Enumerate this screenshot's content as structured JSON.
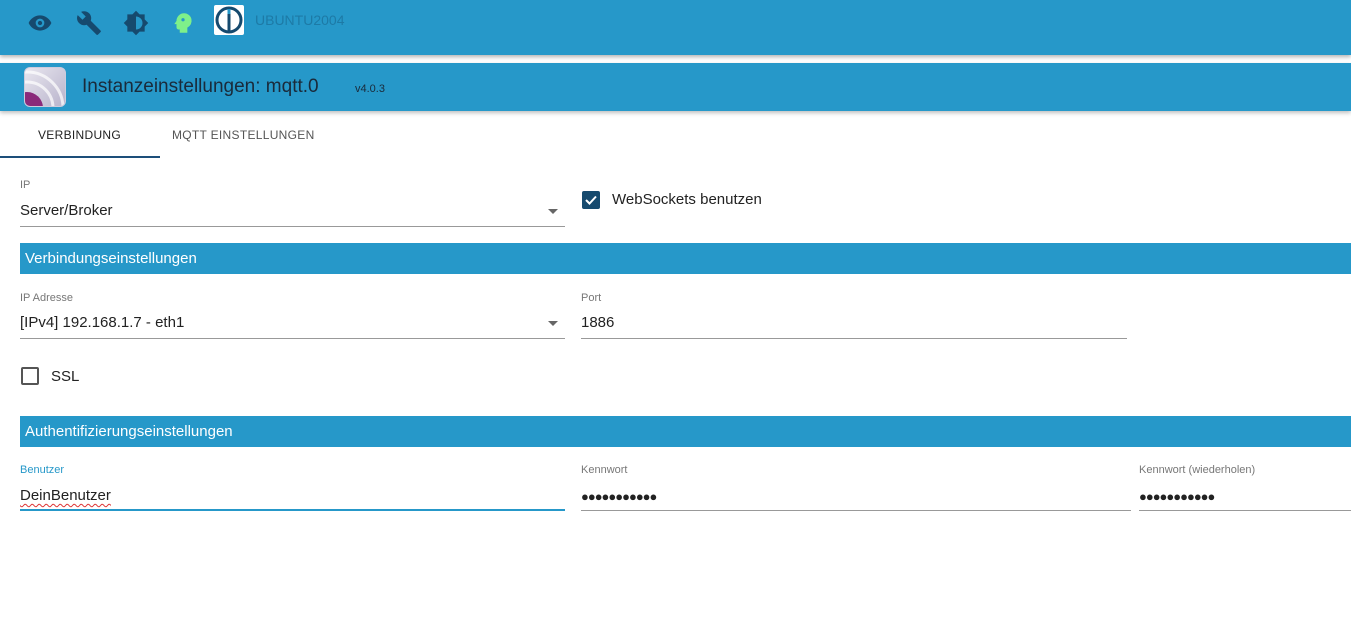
{
  "topbar": {
    "icons": [
      "eye-icon",
      "wrench-icon",
      "brightness-icon",
      "head-icon",
      "iobroker-logo"
    ],
    "host": "UBUNTU2004"
  },
  "header": {
    "title": "Instanzeinstellungen: mqtt.0",
    "version": "v4.0.3"
  },
  "tabs": [
    {
      "label": "VERBINDUNG",
      "active": true
    },
    {
      "label": "MQTT EINSTELLUNGEN",
      "active": false
    }
  ],
  "form": {
    "ip_label": "IP",
    "ip_value": "Server/Broker",
    "websockets_label": "WebSockets benutzen",
    "websockets_checked": true,
    "section1": "Verbindungseinstellungen",
    "ipaddr_label": "IP Adresse",
    "ipaddr_value": "[IPv4] 192.168.1.7 - eth1",
    "port_label": "Port",
    "port_value": "1886",
    "ssl_label": "SSL",
    "ssl_checked": false,
    "section2": "Authentifizierungseinstellungen",
    "user_label": "Benutzer",
    "user_value": "DeinBenutzer",
    "pass_label": "Kennwort",
    "pass_value": "●●●●●●●●●●●",
    "pass2_label": "Kennwort (wiederholen)",
    "pass2_value": "●●●●●●●●●●●"
  },
  "colors": {
    "accent": "#2698c9",
    "dark": "#164a6e",
    "head": "#7ef08a"
  }
}
